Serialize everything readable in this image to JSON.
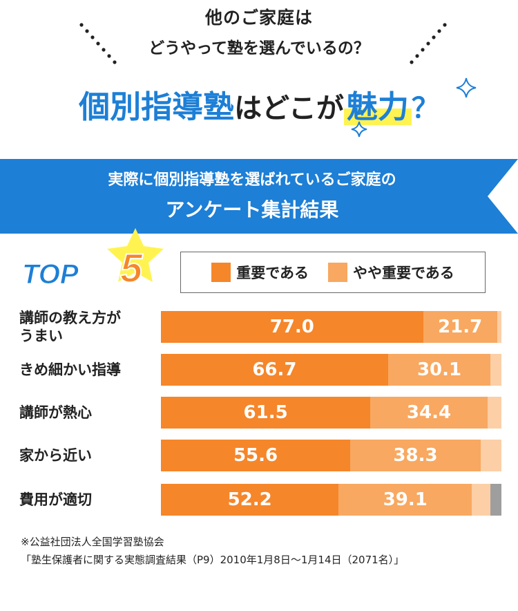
{
  "header": {
    "line1": "他のご家庭は",
    "line2": "どうやって塾を選んでいるの？",
    "title_main": "個別指導塾",
    "title_mid": "はどこが",
    "title_highlight": "魅力",
    "title_q": "？"
  },
  "banner": {
    "line1": "実際に個別指導塾を選ばれているご家庭の",
    "line2": "アンケート集計結果"
  },
  "badge": {
    "text": "TOP",
    "number": "5"
  },
  "legend": {
    "items": [
      {
        "label": "重要である",
        "color": "#f5862a"
      },
      {
        "label": "やや重要である",
        "color": "#f8a860"
      }
    ]
  },
  "colors": {
    "important": "#f5862a",
    "somewhat": "#f8a860",
    "rest": "#fccfa6",
    "other": "#9e9e9e",
    "blue": "#1d7fd6"
  },
  "chart_data": {
    "type": "bar",
    "orientation": "horizontal",
    "stacked": true,
    "categories": [
      "講師の教え方が\nうまい",
      "きめ細かい指導",
      "講師が熱心",
      "家から近い",
      "費用が適切"
    ],
    "series": [
      {
        "name": "重要である",
        "values": [
          77.0,
          66.7,
          61.5,
          55.6,
          52.2
        ]
      },
      {
        "name": "やや重要である",
        "values": [
          21.7,
          30.1,
          34.4,
          38.3,
          39.1
        ]
      }
    ],
    "remainder_values": [
      1.3,
      3.2,
      4.1,
      6.1,
      5.4
    ],
    "last_gray_value": [
      0,
      0,
      0,
      0,
      3.3
    ],
    "data_labels": [
      [
        "77.0",
        "21.7"
      ],
      [
        "66.7",
        "30.1"
      ],
      [
        "61.5",
        "34.4"
      ],
      [
        "55.6",
        "38.3"
      ],
      [
        "52.2",
        "39.1"
      ]
    ],
    "xlim": [
      0,
      100
    ]
  },
  "notes": {
    "line1": "※公益社団法人全国学習塾協会",
    "line2": "「塾生保護者に関する実態調査結果（P9）2010年1月8日〜1月14日（2071名）」"
  }
}
